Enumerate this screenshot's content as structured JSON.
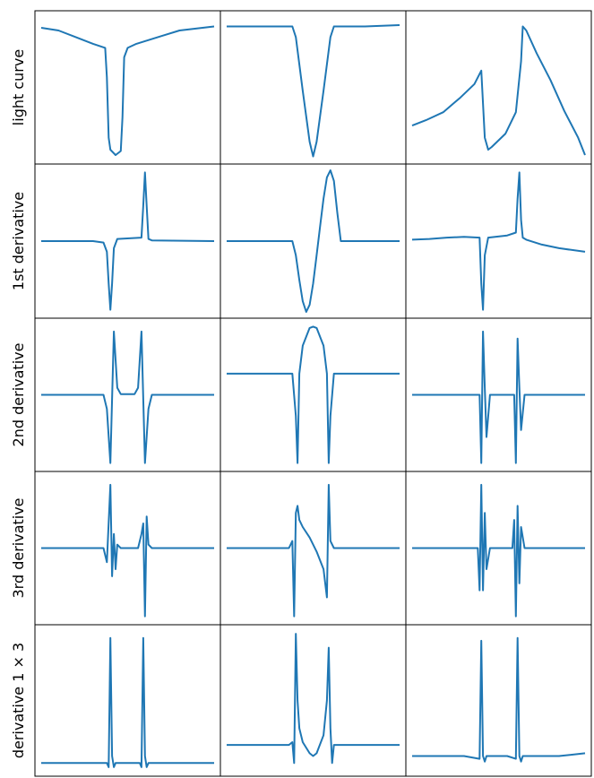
{
  "chart_data": {
    "type": "line",
    "title": "",
    "grid": false,
    "layout": "5x3 panel grid, shared row labels, no ticks",
    "line_color": "#1f77b4",
    "row_labels": [
      "light curve",
      "1st derivative",
      "2nd derivative",
      "3rd derivative",
      "derivative 1 × 3"
    ],
    "panels": [
      {
        "row": 0,
        "col": 0,
        "ylim": [
          0,
          1.05
        ],
        "x": [
          0,
          10,
          20,
          30,
          37,
          38,
          39,
          40,
          43,
          46,
          47,
          48,
          50,
          55,
          60,
          70,
          80,
          100
        ],
        "y": [
          0.97,
          0.95,
          0.9,
          0.85,
          0.82,
          0.6,
          0.15,
          0.06,
          0.02,
          0.05,
          0.3,
          0.75,
          0.82,
          0.85,
          0.87,
          0.91,
          0.95,
          0.98
        ]
      },
      {
        "row": 0,
        "col": 1,
        "ylim": [
          0,
          1.05
        ],
        "x": [
          0,
          20,
          38,
          40,
          44,
          48,
          50,
          52,
          56,
          60,
          62,
          80,
          100
        ],
        "y": [
          0.98,
          0.98,
          0.98,
          0.9,
          0.5,
          0.12,
          0.01,
          0.12,
          0.5,
          0.9,
          0.98,
          0.98,
          0.99
        ]
      },
      {
        "row": 0,
        "col": 2,
        "ylim": [
          0,
          1.05
        ],
        "x": [
          0,
          8,
          18,
          28,
          36,
          40,
          42,
          44,
          46,
          54,
          60,
          63,
          64,
          66,
          72,
          80,
          88,
          96,
          100
        ],
        "y": [
          0.24,
          0.28,
          0.34,
          0.45,
          0.55,
          0.65,
          0.15,
          0.06,
          0.08,
          0.18,
          0.34,
          0.72,
          0.98,
          0.95,
          0.78,
          0.58,
          0.35,
          0.15,
          0.02
        ]
      },
      {
        "row": 1,
        "col": 0,
        "ylim": [
          -1,
          1
        ],
        "x": [
          0,
          30,
          36,
          38,
          39,
          40,
          41,
          42,
          44,
          58,
          59,
          60,
          61,
          62,
          64,
          100
        ],
        "y": [
          0,
          0,
          -0.02,
          -0.15,
          -0.6,
          -0.97,
          -0.6,
          -0.1,
          0.03,
          0.05,
          0.5,
          0.97,
          0.5,
          0.03,
          0.01,
          0
        ]
      },
      {
        "row": 1,
        "col": 1,
        "ylim": [
          -1,
          1
        ],
        "x": [
          0,
          35,
          38,
          40,
          42,
          44,
          46,
          48,
          50,
          52,
          54,
          56,
          58,
          60,
          62,
          64,
          66,
          100
        ],
        "y": [
          0,
          0,
          0,
          -0.2,
          -0.55,
          -0.85,
          -1.0,
          -0.9,
          -0.6,
          -0.2,
          0.2,
          0.6,
          0.9,
          1.0,
          0.85,
          0.4,
          0,
          0
        ]
      },
      {
        "row": 1,
        "col": 2,
        "ylim": [
          -1,
          1
        ],
        "x": [
          0,
          10,
          20,
          30,
          39,
          40,
          41,
          42,
          44,
          55,
          60,
          61,
          62,
          63,
          64,
          66,
          75,
          85,
          100
        ],
        "y": [
          0.02,
          0.03,
          0.05,
          0.06,
          0.05,
          -0.6,
          -0.97,
          -0.2,
          0.05,
          0.08,
          0.12,
          0.6,
          0.97,
          0.3,
          0.05,
          0.02,
          -0.05,
          -0.1,
          -0.15
        ]
      },
      {
        "row": 2,
        "col": 0,
        "ylim": [
          -1,
          1
        ],
        "x": [
          0,
          36,
          38,
          40,
          42,
          44,
          46,
          54,
          56,
          58,
          60,
          62,
          64,
          100
        ],
        "y": [
          0,
          0,
          -0.2,
          -0.97,
          0.9,
          0.1,
          0.01,
          0.01,
          0.1,
          0.9,
          -0.97,
          -0.2,
          0,
          0
        ]
      },
      {
        "row": 2,
        "col": 1,
        "ylim": [
          -1,
          1
        ],
        "x": [
          0,
          36,
          38,
          40,
          41,
          42,
          44,
          48,
          50,
          52,
          56,
          58,
          59,
          60,
          62,
          64,
          100
        ],
        "y": [
          0.3,
          0.3,
          0.3,
          -0.3,
          -0.97,
          0.3,
          0.7,
          0.95,
          0.97,
          0.95,
          0.7,
          0.3,
          -0.97,
          -0.3,
          0.3,
          0.3,
          0.3
        ]
      },
      {
        "row": 2,
        "col": 2,
        "ylim": [
          -1,
          1
        ],
        "x": [
          0,
          10,
          20,
          30,
          39,
          40,
          41,
          42,
          43,
          45,
          55,
          59,
          60,
          61,
          62,
          63,
          65,
          75,
          85,
          100
        ],
        "y": [
          0,
          0,
          0,
          0,
          0,
          -0.97,
          0.9,
          0.1,
          -0.6,
          0,
          0,
          0,
          -0.97,
          0.8,
          0.1,
          -0.5,
          0,
          0,
          0,
          0
        ]
      },
      {
        "row": 3,
        "col": 0,
        "ylim": [
          -1,
          1
        ],
        "x": [
          0,
          36,
          38,
          40,
          41,
          42,
          43,
          44,
          46,
          56,
          58,
          59,
          60,
          61,
          62,
          64,
          100
        ],
        "y": [
          0,
          0,
          -0.2,
          0.9,
          -0.4,
          0.2,
          -0.3,
          0.05,
          0,
          0,
          0.2,
          0.35,
          -0.97,
          0.45,
          0.05,
          0,
          0
        ]
      },
      {
        "row": 3,
        "col": 1,
        "ylim": [
          -1,
          1
        ],
        "x": [
          0,
          36,
          38,
          39,
          40,
          41,
          42,
          44,
          48,
          52,
          56,
          58,
          59,
          60,
          62,
          100
        ],
        "y": [
          0,
          0,
          0.1,
          -0.97,
          0.5,
          0.6,
          0.4,
          0.3,
          0.15,
          -0.05,
          -0.3,
          -0.7,
          0.9,
          0.1,
          0,
          0
        ]
      },
      {
        "row": 3,
        "col": 2,
        "ylim": [
          -1,
          1
        ],
        "x": [
          0,
          10,
          20,
          30,
          38,
          39,
          40,
          41,
          42,
          43,
          45,
          55,
          58,
          59,
          60,
          61,
          62,
          63,
          65,
          75,
          85,
          100
        ],
        "y": [
          0,
          0,
          0,
          0,
          0,
          -0.6,
          0.9,
          -0.6,
          0.5,
          -0.3,
          0,
          0,
          0,
          0.4,
          -0.97,
          0.6,
          -0.5,
          0.3,
          0,
          0,
          0,
          0
        ]
      },
      {
        "row": 4,
        "col": 0,
        "ylim": [
          0,
          1
        ],
        "x": [
          0,
          38,
          39,
          40,
          41,
          42,
          43,
          57,
          58,
          59,
          60,
          61,
          62,
          100
        ],
        "y": [
          0.05,
          0.05,
          0.02,
          0.95,
          0.1,
          0.02,
          0.05,
          0.05,
          0.02,
          0.95,
          0.1,
          0.02,
          0.05,
          0.05
        ]
      },
      {
        "row": 4,
        "col": 1,
        "ylim": [
          0,
          1
        ],
        "x": [
          0,
          36,
          38,
          39,
          40,
          41,
          42,
          44,
          48,
          50,
          52,
          56,
          58,
          59,
          60,
          61,
          62,
          64,
          100
        ],
        "y": [
          0.18,
          0.18,
          0.2,
          0.05,
          0.98,
          0.5,
          0.3,
          0.2,
          0.12,
          0.1,
          0.12,
          0.25,
          0.5,
          0.88,
          0.3,
          0.05,
          0.18,
          0.18,
          0.18
        ]
      },
      {
        "row": 4,
        "col": 2,
        "ylim": [
          0,
          1
        ],
        "x": [
          0,
          10,
          20,
          30,
          39,
          40,
          41,
          42,
          43,
          45,
          55,
          60,
          61,
          62,
          63,
          64,
          66,
          75,
          85,
          100
        ],
        "y": [
          0.1,
          0.1,
          0.1,
          0.1,
          0.08,
          0.93,
          0.1,
          0.06,
          0.1,
          0.1,
          0.1,
          0.08,
          0.95,
          0.1,
          0.06,
          0.1,
          0.1,
          0.1,
          0.1,
          0.12
        ]
      }
    ]
  }
}
